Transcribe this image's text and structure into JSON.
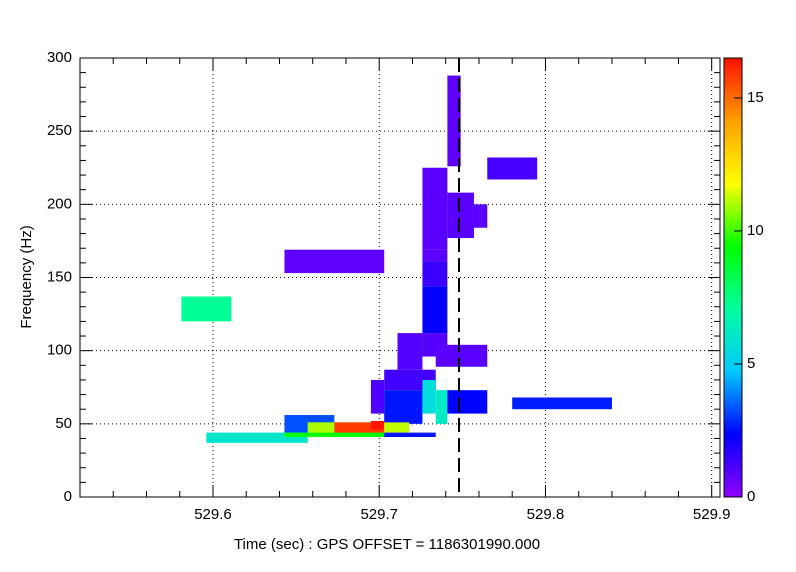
{
  "chart_data": {
    "type": "heatmap",
    "xlabel": "Time (sec) : GPS OFFSET = 1186301990.000",
    "ylabel": "Frequency (Hz)",
    "xlim": [
      529.52,
      529.905
    ],
    "ylim": [
      0,
      300
    ],
    "zlim": [
      0,
      16.5
    ],
    "xticks": [
      529.6,
      529.7,
      529.8,
      529.9
    ],
    "xminorticks": [
      529.52,
      529.54,
      529.56,
      529.58,
      529.62,
      529.64,
      529.66,
      529.68,
      529.72,
      529.74,
      529.76,
      529.78,
      529.82,
      529.84,
      529.86,
      529.88
    ],
    "yticks": [
      0,
      50,
      100,
      150,
      200,
      250,
      300
    ],
    "yminorticks": [
      10,
      20,
      30,
      40,
      60,
      70,
      80,
      90,
      110,
      120,
      130,
      140,
      160,
      170,
      180,
      190,
      210,
      220,
      230,
      240,
      260,
      270,
      280,
      290
    ],
    "zticks": [
      0,
      5,
      10,
      15
    ],
    "grid": true,
    "vline": 529.748,
    "colorscale": [
      "#9000ff",
      "#0000ff",
      "#00c8ff",
      "#00ffa0",
      "#00ff00",
      "#ffff00",
      "#ffa000",
      "#ff1000"
    ],
    "tiles": [
      {
        "x0": 529.581,
        "x1": 529.611,
        "y0": 120,
        "y1": 137,
        "value": 7.2
      },
      {
        "x0": 529.643,
        "x1": 529.703,
        "y0": 153,
        "y1": 169,
        "value": 0.8
      },
      {
        "x0": 529.765,
        "x1": 529.795,
        "y0": 217,
        "y1": 232,
        "value": 1.2
      },
      {
        "x0": 529.741,
        "x1": 529.749,
        "y0": 226,
        "y1": 288,
        "value": 0.8
      },
      {
        "x0": 529.726,
        "x1": 529.741,
        "y0": 169,
        "y1": 225,
        "value": 0.9
      },
      {
        "x0": 529.741,
        "x1": 529.757,
        "y0": 177,
        "y1": 208,
        "value": 0.9
      },
      {
        "x0": 529.757,
        "x1": 529.765,
        "y0": 184,
        "y1": 200,
        "value": 0.9
      },
      {
        "x0": 529.726,
        "x1": 529.741,
        "y0": 161,
        "y1": 169,
        "value": 0.9
      },
      {
        "x0": 529.726,
        "x1": 529.741,
        "y0": 144,
        "y1": 161,
        "value": 1.4
      },
      {
        "x0": 529.726,
        "x1": 529.741,
        "y0": 112,
        "y1": 144,
        "value": 2.3
      },
      {
        "x0": 529.726,
        "x1": 529.741,
        "y0": 96,
        "y1": 112,
        "value": 1.0
      },
      {
        "x0": 529.711,
        "x1": 529.726,
        "y0": 87,
        "y1": 112,
        "value": 1.0
      },
      {
        "x0": 529.734,
        "x1": 529.765,
        "y0": 89,
        "y1": 104,
        "value": 0.9
      },
      {
        "x0": 529.703,
        "x1": 529.734,
        "y0": 73,
        "y1": 87,
        "value": 1.3
      },
      {
        "x0": 529.695,
        "x1": 529.703,
        "y0": 57,
        "y1": 80,
        "value": 1.1
      },
      {
        "x0": 529.703,
        "x1": 529.726,
        "y0": 50,
        "y1": 73,
        "value": 2.6
      },
      {
        "x0": 529.726,
        "x1": 529.734,
        "y0": 57,
        "y1": 80,
        "value": 5.6
      },
      {
        "x0": 529.734,
        "x1": 529.741,
        "y0": 50,
        "y1": 73,
        "value": 6.2
      },
      {
        "x0": 529.741,
        "x1": 529.765,
        "y0": 57,
        "y1": 73,
        "value": 2.4
      },
      {
        "x0": 529.78,
        "x1": 529.84,
        "y0": 60,
        "y1": 68,
        "value": 2.7
      },
      {
        "x0": 529.643,
        "x1": 529.673,
        "y0": 41,
        "y1": 56,
        "value": 3.3
      },
      {
        "x0": 529.657,
        "x1": 529.703,
        "y0": 41,
        "y1": 51,
        "value": 9.5
      },
      {
        "x0": 529.657,
        "x1": 529.673,
        "y0": 44,
        "y1": 51,
        "value": 11.0
      },
      {
        "x0": 529.673,
        "x1": 529.703,
        "y0": 44,
        "y1": 51,
        "value": 15.8
      },
      {
        "x0": 529.695,
        "x1": 529.703,
        "y0": 46,
        "y1": 52,
        "value": 16.4
      },
      {
        "x0": 529.703,
        "x1": 529.718,
        "y0": 44,
        "y1": 51,
        "value": 11.2
      },
      {
        "x0": 529.703,
        "x1": 529.734,
        "y0": 41,
        "y1": 44,
        "value": 2.6
      },
      {
        "x0": 529.596,
        "x1": 529.657,
        "y0": 37,
        "y1": 44,
        "value": 6.0
      },
      {
        "x0": 529.643,
        "x1": 529.657,
        "y0": 41,
        "y1": 44,
        "value": 9.2
      }
    ]
  }
}
